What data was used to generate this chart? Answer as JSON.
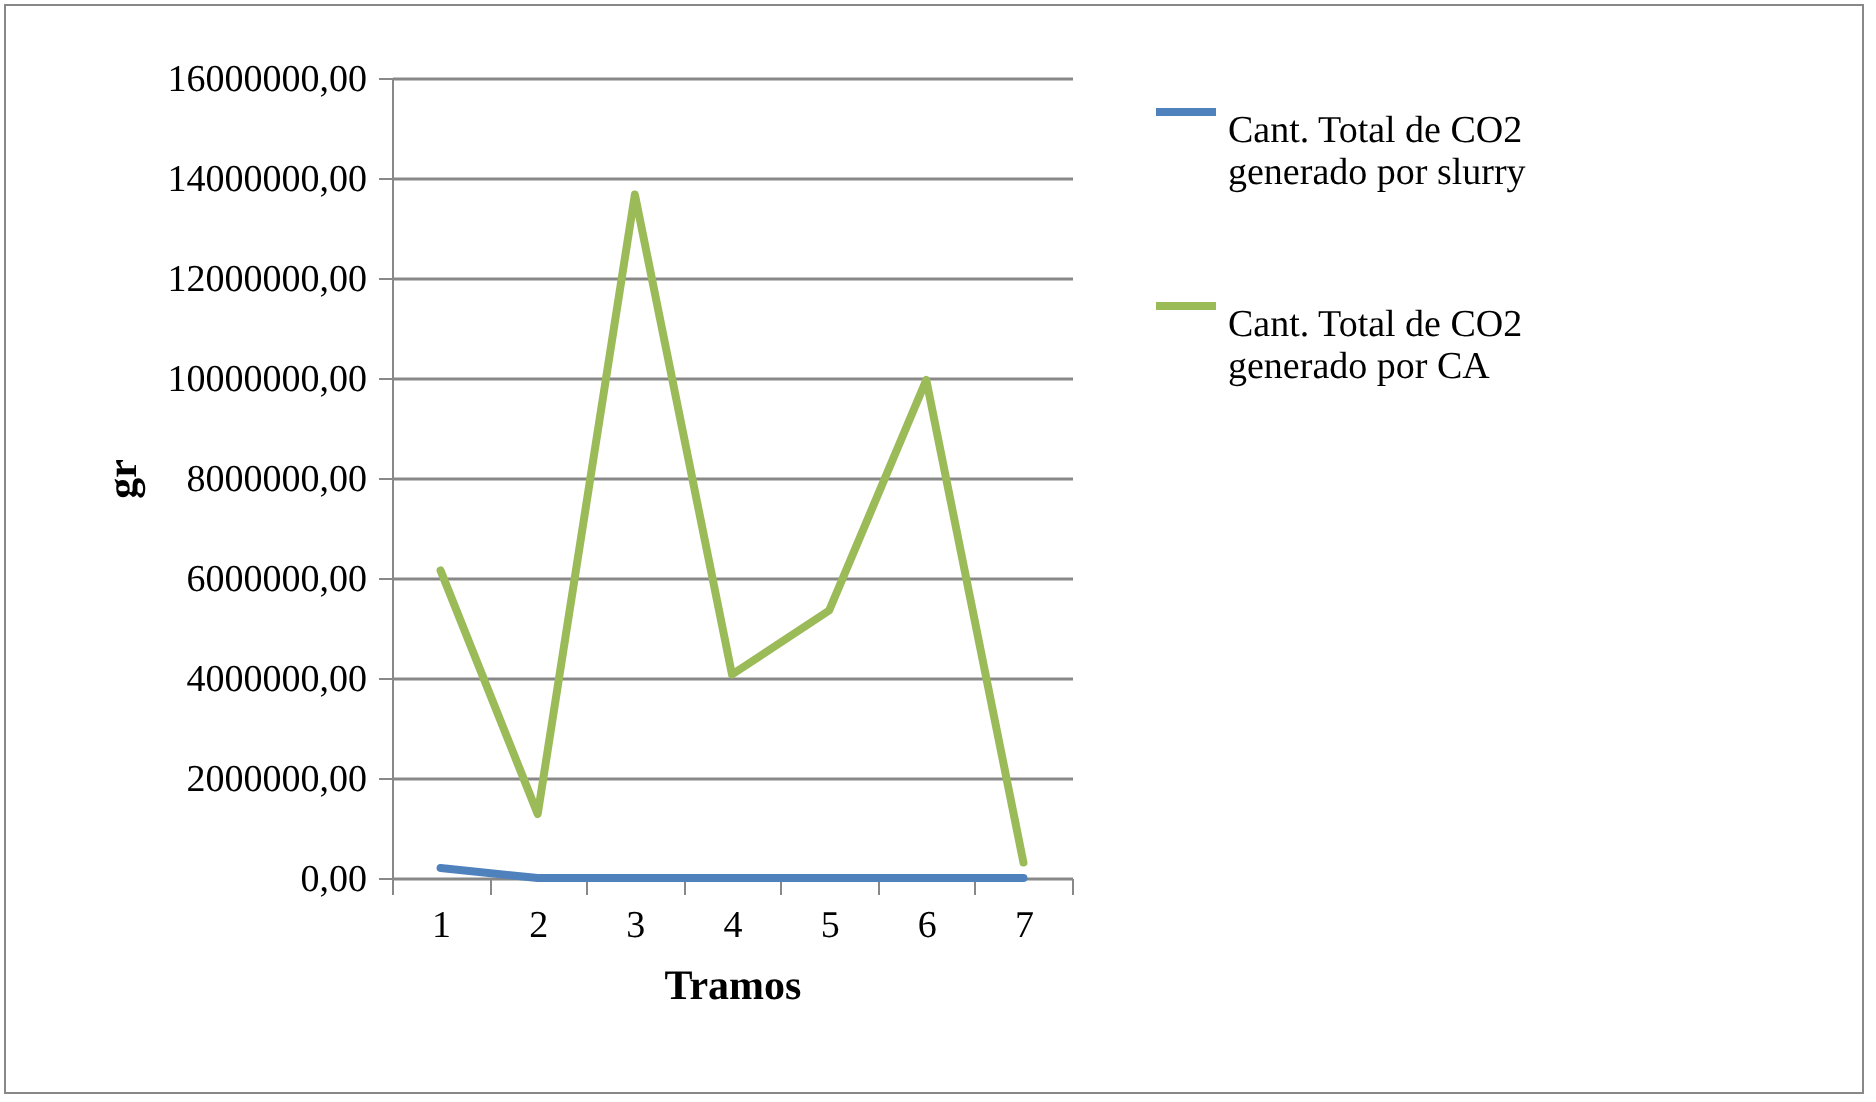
{
  "chart_data": {
    "type": "line",
    "xlabel": "Tramos",
    "ylabel": "gr",
    "categories": [
      "1",
      "2",
      "3",
      "4",
      "5",
      "6",
      "7"
    ],
    "series": [
      {
        "name": "Cant. Total de CO2 generado por slurry",
        "color": "#4f81bd",
        "values": [
          200000,
          0,
          0,
          0,
          0,
          0,
          0
        ]
      },
      {
        "name": "Cant. Total de CO2 generado por CA",
        "color": "#9bbb59",
        "values": [
          6150000,
          1280000,
          13670000,
          4070000,
          5350000,
          9960000,
          310000
        ]
      }
    ],
    "ylim": [
      0,
      16000000
    ],
    "yticks": [
      {
        "value": 0,
        "label": "0,00"
      },
      {
        "value": 2000000,
        "label": "2000000,00"
      },
      {
        "value": 4000000,
        "label": "4000000,00"
      },
      {
        "value": 6000000,
        "label": "6000000,00"
      },
      {
        "value": 8000000,
        "label": "8000000,00"
      },
      {
        "value": 10000000,
        "label": "10000000,00"
      },
      {
        "value": 12000000,
        "label": "12000000,00"
      },
      {
        "value": 14000000,
        "label": "14000000,00"
      },
      {
        "value": 16000000,
        "label": "16000000,00"
      }
    ],
    "grid": "y",
    "legend": "right",
    "marker": "none",
    "line_style": "solid"
  }
}
